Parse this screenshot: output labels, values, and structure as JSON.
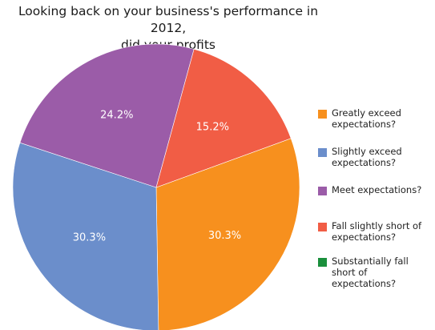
{
  "chart_data": {
    "type": "pie",
    "title_lines": [
      "Looking back on your business's performance in 2012,",
      "did your profits"
    ],
    "categories": [
      "Greatly exceed expectations?",
      "Slightly exceed expectations?",
      "Meet expectations?",
      "Fall slightly short of expectations?",
      "Substantially fall short of expectations?"
    ],
    "values": [
      30.3,
      30.3,
      24.2,
      15.2,
      0
    ],
    "labels": [
      "30.3%",
      "30.3%",
      "24.2%",
      "15.2%",
      ""
    ],
    "colors": [
      "#f7901e",
      "#6b8ecb",
      "#9b5ca8",
      "#f15d45",
      "#1a8f3c"
    ],
    "legend_position": "right"
  }
}
